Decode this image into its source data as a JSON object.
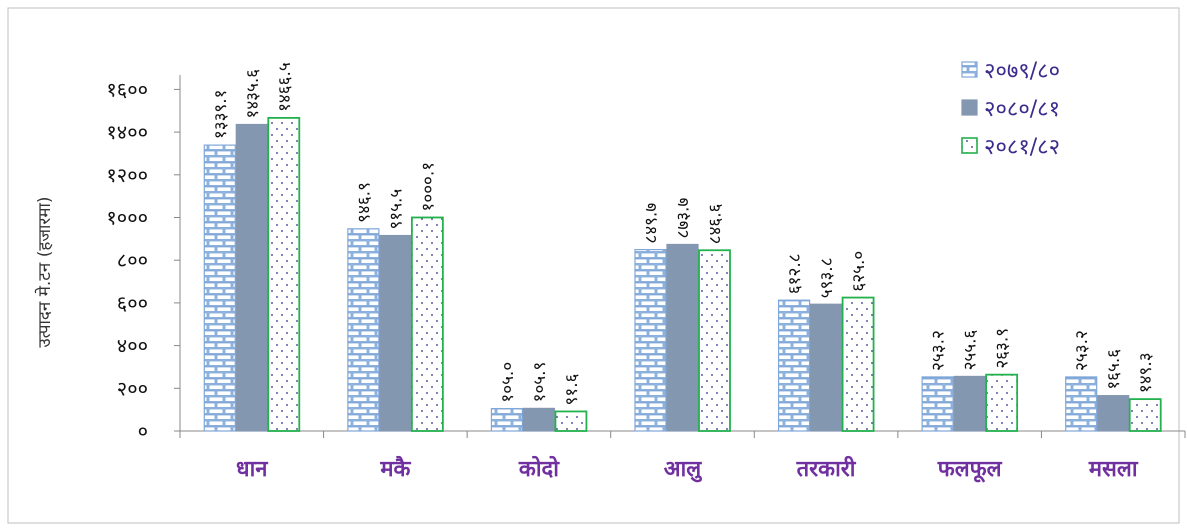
{
  "chart_data": {
    "type": "bar",
    "ylabel": "उत्पादन मे.टन (हजारमा)",
    "ylim": [
      0,
      1700
    ],
    "yticks": [
      0,
      200,
      400,
      600,
      800,
      1000,
      1200,
      1400,
      1600
    ],
    "ytick_labels": [
      "०",
      "२००",
      "४००",
      "६००",
      "८००",
      "१०००",
      "१२००",
      "१४००",
      "१६००"
    ],
    "categories": [
      "धान",
      "मकै",
      "कोदो",
      "आलु",
      "तरकारी",
      "फलफूल",
      "मसला"
    ],
    "series": [
      {
        "name": "२०७९/८०",
        "values": [
          1339.1,
          946.9,
          105.0,
          849.7,
          612.8,
          253.2,
          253.2
        ],
        "labels": [
          "१३३९.१",
          "९४६.९",
          "१०५.०",
          "८४९.७",
          "६१२.८",
          "२५३.२",
          "२५३.२"
        ]
      },
      {
        "name": "२०८०/८१",
        "values": [
          1435.6,
          915.5,
          105.9,
          873.7,
          593.8,
          255.6,
          165.6
        ],
        "labels": [
          "१४३५.६",
          "९१५.५",
          "१०५.९",
          "८७३.७",
          "५९३.८",
          "२५५.६",
          "१६५.६"
        ]
      },
      {
        "name": "२०८१/८२",
        "values": [
          1466.5,
          1000.1,
          91.6,
          846.6,
          625.0,
          263.9,
          149.3
        ],
        "labels": [
          "१४६६.५",
          "१०००.१",
          "९१.६",
          "८४६.६",
          "६२५.०",
          "२६३.९",
          "१४९.३"
        ]
      }
    ],
    "legend_position": "top-right",
    "grid": false
  },
  "colors": {
    "series1_fill": "#ffffff",
    "series1_pattern": "#7fa7d9",
    "series2_fill": "#8497b0",
    "series3_stroke": "#22b14c",
    "series3_dots": "#2a2a8a",
    "category_text": "#7030a0",
    "legend_text": "#3b2b8c"
  }
}
